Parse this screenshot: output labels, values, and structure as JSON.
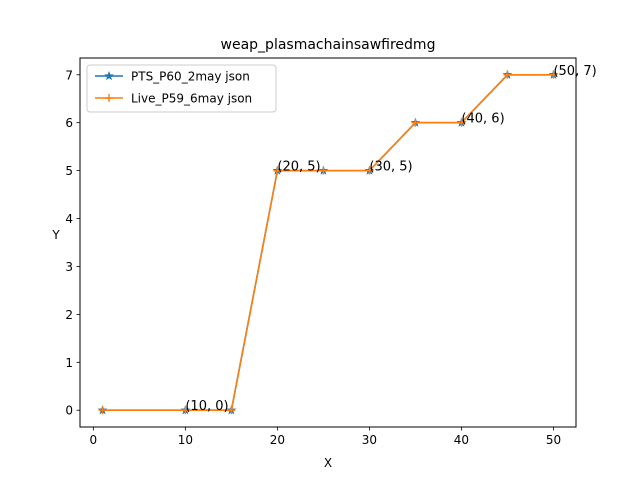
{
  "chart_data": {
    "type": "line",
    "title": "weap_plasmachainsawfiredmg",
    "xlabel": "X",
    "ylabel": "Y",
    "xlim": [
      -1.45,
      52.45
    ],
    "ylim": [
      -0.35,
      7.35
    ],
    "xticks": [
      0,
      10,
      20,
      30,
      40,
      50
    ],
    "yticks": [
      0,
      1,
      2,
      3,
      4,
      5,
      6,
      7
    ],
    "grid": false,
    "legend_position": "top-left",
    "series": [
      {
        "name": "PTS_P60_2may json",
        "color": "#1f77b4",
        "marker": "star",
        "x": [
          1,
          10,
          15,
          20,
          25,
          30,
          35,
          40,
          45,
          50
        ],
        "y": [
          0,
          0,
          0,
          5,
          5,
          5,
          6,
          6,
          7,
          7
        ]
      },
      {
        "name": "Live_P59_6may json",
        "color": "#ff7f0e",
        "marker": "plus",
        "x": [
          1,
          10,
          15,
          20,
          25,
          30,
          35,
          40,
          45,
          50
        ],
        "y": [
          0,
          0,
          0,
          5,
          5,
          5,
          6,
          6,
          7,
          7
        ]
      }
    ],
    "annotations": [
      {
        "text": "(10, 0)",
        "x": 10,
        "y": 0
      },
      {
        "text": "(20, 5)",
        "x": 20,
        "y": 5
      },
      {
        "text": "(30, 5)",
        "x": 30,
        "y": 5
      },
      {
        "text": "(40, 6)",
        "x": 40,
        "y": 6
      },
      {
        "text": "(50, 7)",
        "x": 50,
        "y": 7
      }
    ]
  }
}
